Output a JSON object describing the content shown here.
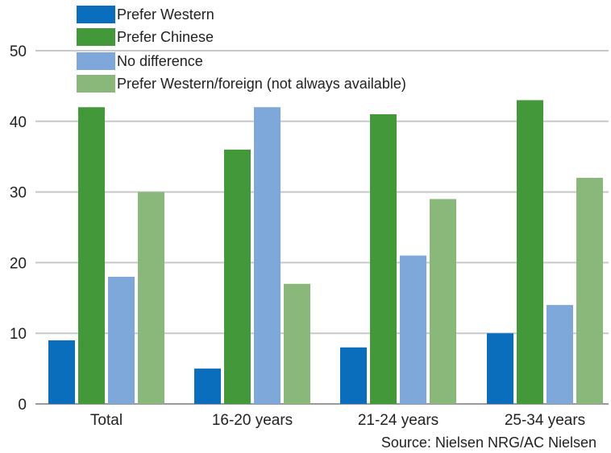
{
  "chart_data": {
    "type": "bar",
    "categories": [
      "Total",
      "16-20 years",
      "21-24 years",
      "25-34 years"
    ],
    "series": [
      {
        "name": "Prefer Western",
        "color": "#0a6ebd",
        "values": [
          9,
          5,
          8,
          10
        ]
      },
      {
        "name": "Prefer Chinese",
        "color": "#43983a",
        "values": [
          42,
          36,
          41,
          43
        ]
      },
      {
        "name": "No difference",
        "color": "#7ea7da",
        "values": [
          18,
          42,
          21,
          14
        ]
      },
      {
        "name": "Prefer Western/foreign (not always available)",
        "color": "#8ab87a",
        "values": [
          30,
          17,
          29,
          32
        ]
      }
    ],
    "title": "",
    "xlabel": "",
    "ylabel": "",
    "ylim": [
      0,
      50
    ],
    "yticks": [
      0,
      10,
      20,
      30,
      40,
      50
    ],
    "grid": true,
    "legend_position": "top-left",
    "source": "Source: Nielsen NRG/AC Nielsen"
  }
}
